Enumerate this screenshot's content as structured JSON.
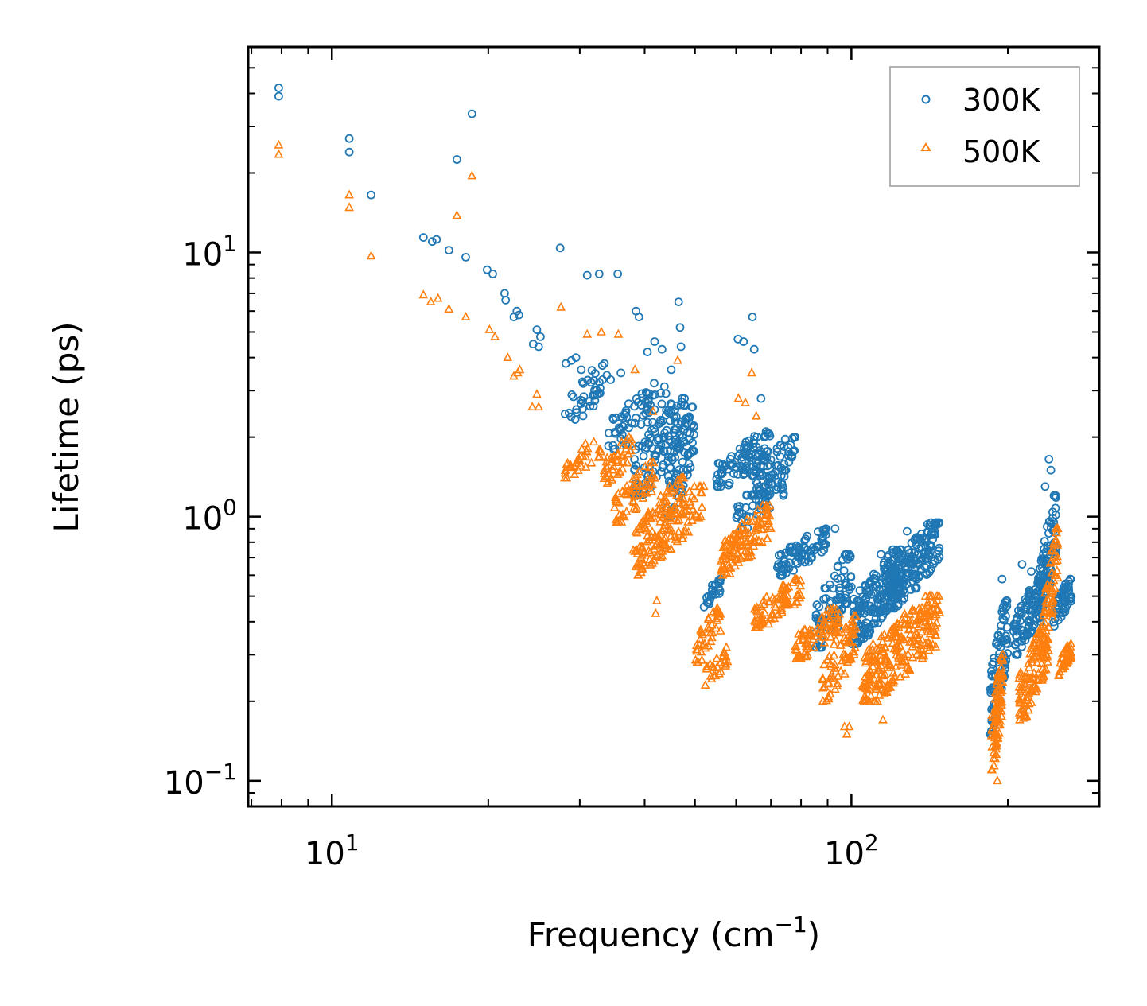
{
  "chart_data": {
    "type": "scatter",
    "xscale": "log",
    "yscale": "log",
    "xlim": [
      6.9,
      300
    ],
    "ylim": [
      0.08,
      60
    ],
    "xlabel": "Frequency (cm",
    "xlabel_exp": "−1",
    "xlabel_close": ")",
    "ylabel": "Lifetime (ps)",
    "legend_position": "top-right",
    "x_ticks": [
      {
        "value": 10,
        "base": "10",
        "exp": "1"
      },
      {
        "value": 100,
        "base": "10",
        "exp": "2"
      }
    ],
    "y_ticks": [
      {
        "value": 0.1,
        "base": "10",
        "exp": "−1"
      },
      {
        "value": 1,
        "base": "10",
        "exp": "0"
      },
      {
        "value": 10,
        "base": "10",
        "exp": "1"
      }
    ],
    "series": [
      {
        "name": "300K",
        "marker": "circle",
        "color": "#1f77b4",
        "points": [
          [
            7.9,
            42
          ],
          [
            7.9,
            39
          ],
          [
            10.8,
            27
          ],
          [
            10.8,
            24
          ],
          [
            11.9,
            16.5
          ],
          [
            15,
            11.4
          ],
          [
            15.6,
            11.0
          ],
          [
            15.9,
            11.2
          ],
          [
            16.8,
            10.2
          ],
          [
            18.1,
            9.6
          ],
          [
            17.4,
            22.5
          ],
          [
            18.6,
            33.5
          ],
          [
            19.9,
            8.6
          ],
          [
            20.4,
            8.3
          ],
          [
            21.5,
            7.0
          ],
          [
            21.6,
            6.6
          ],
          [
            22.4,
            5.7
          ],
          [
            22.7,
            6.0
          ],
          [
            22.9,
            5.8
          ],
          [
            24.4,
            4.5
          ],
          [
            24.8,
            5.1
          ],
          [
            25,
            4.4
          ],
          [
            25.2,
            4.8
          ],
          [
            27.5,
            10.4
          ],
          [
            28.2,
            3.8
          ],
          [
            28.9,
            3.9
          ],
          [
            29.5,
            4.0
          ],
          [
            30.2,
            3.6
          ],
          [
            31,
            8.2
          ],
          [
            32.7,
            8.3
          ],
          [
            33.2,
            3.3
          ],
          [
            34.4,
            3.3
          ],
          [
            35.5,
            8.3
          ],
          [
            36,
            3.5
          ],
          [
            38.5,
            6.0
          ],
          [
            39,
            5.7
          ],
          [
            40.5,
            4.2
          ],
          [
            41.8,
            4.6
          ],
          [
            43.2,
            4.3
          ],
          [
            45,
            3.6
          ],
          [
            46.5,
            6.5
          ],
          [
            46.8,
            5.2
          ],
          [
            47,
            4.4
          ],
          [
            60.5,
            4.7
          ],
          [
            62,
            4.6
          ],
          [
            64.5,
            5.7
          ],
          [
            65,
            4.3
          ],
          [
            67,
            2.8
          ],
          [
            93,
            0.9
          ],
          [
            114,
            0.72
          ],
          [
            118,
            0.65
          ],
          [
            128,
            0.88
          ],
          [
            195,
            0.58
          ],
          [
            213,
            0.66
          ],
          [
            222,
            0.62
          ],
          [
            240,
            1.65
          ],
          [
            242,
            1.5
          ],
          [
            236,
            1.3
          ],
          [
            200,
            0.33
          ],
          [
            190,
            0.33
          ],
          [
            94,
            0.38
          ]
        ],
        "clusters": [
          {
            "x": [
              28,
              34
            ],
            "y": [
              2.2,
              3.8
            ],
            "n": 40
          },
          {
            "x": [
              34,
              44
            ],
            "y": [
              1.8,
              3.2
            ],
            "n": 60
          },
          {
            "x": [
              38,
              48
            ],
            "y": [
              1.2,
              2.8
            ],
            "n": 110
          },
          {
            "x": [
              44,
              50
            ],
            "y": [
              1.0,
              2.6
            ],
            "n": 70
          },
          {
            "x": [
              52,
              56
            ],
            "y": [
              0.45,
              0.58
            ],
            "n": 25
          },
          {
            "x": [
              55,
              70
            ],
            "y": [
              1.3,
              2.1
            ],
            "n": 90
          },
          {
            "x": [
              64,
              78
            ],
            "y": [
              1.2,
              2.0
            ],
            "n": 60
          },
          {
            "x": [
              60,
              75
            ],
            "y": [
              0.9,
              1.5
            ],
            "n": 60
          },
          {
            "x": [
              72,
              90
            ],
            "y": [
              0.6,
              0.9
            ],
            "n": 80
          },
          {
            "x": [
              85,
              100
            ],
            "y": [
              0.32,
              0.72
            ],
            "n": 90
          },
          {
            "x": [
              100,
              125
            ],
            "y": [
              0.33,
              0.75
            ],
            "n": 200
          },
          {
            "x": [
              118,
              148
            ],
            "y": [
              0.45,
              0.95
            ],
            "n": 180
          },
          {
            "x": [
              185,
              200
            ],
            "y": [
              0.15,
              0.48
            ],
            "n": 90
          },
          {
            "x": [
              205,
              235
            ],
            "y": [
              0.3,
              0.6
            ],
            "n": 120
          },
          {
            "x": [
              230,
              248
            ],
            "y": [
              0.4,
              1.2
            ],
            "n": 80
          },
          {
            "x": [
              245,
              265
            ],
            "y": [
              0.38,
              0.58
            ],
            "n": 50
          }
        ]
      },
      {
        "name": "500K",
        "marker": "triangle",
        "color": "#ff7f0e",
        "points": [
          [
            7.9,
            25.5
          ],
          [
            7.9,
            23.5
          ],
          [
            10.8,
            16.5
          ],
          [
            10.8,
            14.8
          ],
          [
            11.9,
            9.7
          ],
          [
            15,
            6.9
          ],
          [
            15.5,
            6.5
          ],
          [
            16,
            6.7
          ],
          [
            16.8,
            6.1
          ],
          [
            18.1,
            5.7
          ],
          [
            17.4,
            13.8
          ],
          [
            18.6,
            19.5
          ],
          [
            20.1,
            5.1
          ],
          [
            20.6,
            4.8
          ],
          [
            21.8,
            4.0
          ],
          [
            22.4,
            3.4
          ],
          [
            22.8,
            3.5
          ],
          [
            23,
            3.6
          ],
          [
            24.3,
            2.6
          ],
          [
            24.8,
            2.9
          ],
          [
            25,
            2.6
          ],
          [
            27.6,
            6.2
          ],
          [
            31,
            4.9
          ],
          [
            33,
            5.0
          ],
          [
            35.6,
            4.9
          ],
          [
            38.3,
            3.6
          ],
          [
            41.5,
            2.5
          ],
          [
            46.3,
            3.9
          ],
          [
            64.3,
            3.5
          ],
          [
            60.6,
            2.8
          ],
          [
            62.5,
            2.7
          ],
          [
            65.6,
            2.4
          ],
          [
            97,
            0.16
          ],
          [
            99,
            0.16
          ],
          [
            98,
            0.15
          ],
          [
            115,
            0.17
          ],
          [
            191,
            0.1
          ],
          [
            42,
            0.43
          ],
          [
            42.2,
            0.48
          ]
        ],
        "clusters": [
          {
            "x": [
              28,
              33
            ],
            "y": [
              1.4,
              2.0
            ],
            "n": 35
          },
          {
            "x": [
              33,
              38
            ],
            "y": [
              1.3,
              2.0
            ],
            "n": 40
          },
          {
            "x": [
              35,
              42
            ],
            "y": [
              0.95,
              1.6
            ],
            "n": 60
          },
          {
            "x": [
              38,
              48
            ],
            "y": [
              0.6,
              1.4
            ],
            "n": 120
          },
          {
            "x": [
              42,
              52
            ],
            "y": [
              0.7,
              1.3
            ],
            "n": 60
          },
          {
            "x": [
              50,
              56
            ],
            "y": [
              0.28,
              0.45
            ],
            "n": 40
          },
          {
            "x": [
              52,
              58
            ],
            "y": [
              0.23,
              0.32
            ],
            "n": 25
          },
          {
            "x": [
              56,
              70
            ],
            "y": [
              0.6,
              1.1
            ],
            "n": 120
          },
          {
            "x": [
              65,
              80
            ],
            "y": [
              0.38,
              0.58
            ],
            "n": 80
          },
          {
            "x": [
              78,
              95
            ],
            "y": [
              0.29,
              0.45
            ],
            "n": 80
          },
          {
            "x": [
              88,
              102
            ],
            "y": [
              0.2,
              0.42
            ],
            "n": 70
          },
          {
            "x": [
              105,
              148
            ],
            "y": [
              0.2,
              0.5
            ],
            "n": 260
          },
          {
            "x": [
              186,
              196
            ],
            "y": [
              0.11,
              0.3
            ],
            "n": 90
          },
          {
            "x": [
              210,
              240
            ],
            "y": [
              0.17,
              0.4
            ],
            "n": 120
          },
          {
            "x": [
              234,
              250
            ],
            "y": [
              0.3,
              0.9
            ],
            "n": 60
          },
          {
            "x": [
              250,
              265
            ],
            "y": [
              0.25,
              0.33
            ],
            "n": 40
          }
        ]
      }
    ]
  }
}
